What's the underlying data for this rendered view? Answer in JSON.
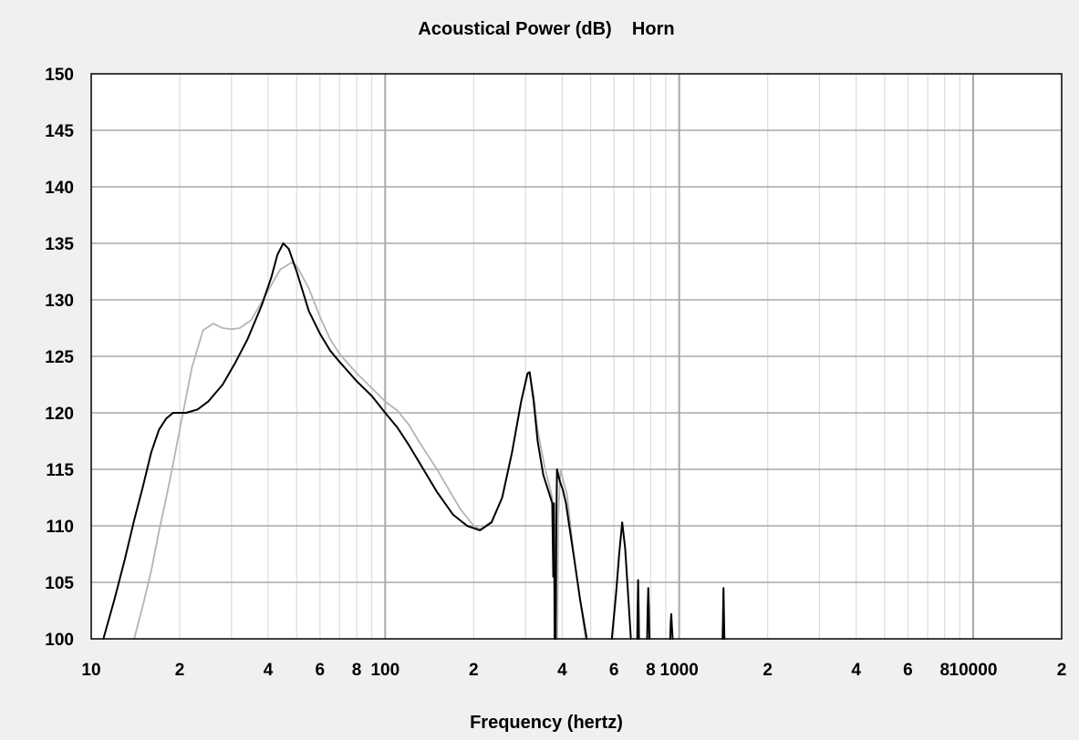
{
  "chart_data": {
    "type": "line",
    "title": "Acoustical Power (dB)    Horn",
    "xlabel": "Frequency (hertz)",
    "ylabel": "",
    "x_scale": "log",
    "xlim": [
      10,
      20000
    ],
    "ylim": [
      100,
      150
    ],
    "grid": true,
    "x_tick_labels": [
      {
        "value": 10,
        "label": "10"
      },
      {
        "value": 20,
        "label": "2"
      },
      {
        "value": 40,
        "label": "4"
      },
      {
        "value": 60,
        "label": "6"
      },
      {
        "value": 80,
        "label": "8"
      },
      {
        "value": 100,
        "label": "100"
      },
      {
        "value": 200,
        "label": "2"
      },
      {
        "value": 400,
        "label": "4"
      },
      {
        "value": 600,
        "label": "6"
      },
      {
        "value": 800,
        "label": "8"
      },
      {
        "value": 1000,
        "label": "1000"
      },
      {
        "value": 2000,
        "label": "2"
      },
      {
        "value": 4000,
        "label": "4"
      },
      {
        "value": 6000,
        "label": "6"
      },
      {
        "value": 8000,
        "label": "8"
      },
      {
        "value": 10000,
        "label": "10000"
      },
      {
        "value": 20000,
        "label": "2"
      }
    ],
    "y_ticks": [
      100,
      105,
      110,
      115,
      120,
      125,
      130,
      135,
      140,
      145,
      150
    ],
    "series": [
      {
        "color": "#b4b4b4",
        "points": [
          [
            14,
            100
          ],
          [
            15,
            103
          ],
          [
            16,
            106
          ],
          [
            17,
            109.5
          ],
          [
            18,
            112.5
          ],
          [
            19,
            115.5
          ],
          [
            20,
            118.5
          ],
          [
            22,
            124
          ],
          [
            24,
            127.3
          ],
          [
            26,
            127.9
          ],
          [
            28,
            127.5
          ],
          [
            30,
            127.4
          ],
          [
            32,
            127.5
          ],
          [
            35,
            128.2
          ],
          [
            38,
            129.8
          ],
          [
            42,
            131.8
          ],
          [
            44,
            132.7
          ],
          [
            46,
            133.0
          ],
          [
            48,
            133.3
          ],
          [
            50,
            133.0
          ],
          [
            55,
            131.0
          ],
          [
            60,
            128.5
          ],
          [
            65,
            126.5
          ],
          [
            70,
            125.2
          ],
          [
            80,
            123.5
          ],
          [
            90,
            122.2
          ],
          [
            100,
            121.0
          ],
          [
            110,
            120.2
          ],
          [
            120,
            119.0
          ],
          [
            130,
            117.5
          ],
          [
            150,
            115.0
          ],
          [
            180,
            111.5
          ],
          [
            200,
            110.0
          ],
          [
            210,
            109.7
          ],
          [
            230,
            110.4
          ],
          [
            250,
            112.5
          ],
          [
            270,
            116.5
          ],
          [
            290,
            121.0
          ],
          [
            305,
            123.4
          ],
          [
            310,
            123.5
          ],
          [
            320,
            121.5
          ],
          [
            330,
            118.5
          ],
          [
            350,
            115.0
          ],
          [
            360,
            113.8
          ],
          [
            370,
            112.5
          ],
          [
            375,
            110
          ],
          [
            380,
            100
          ]
        ]
      },
      {
        "color": "#b4b4b4",
        "points": [
          [
            385,
            100
          ],
          [
            388,
            111
          ],
          [
            395,
            115.0
          ],
          [
            405,
            113.8
          ],
          [
            415,
            112.8
          ],
          [
            425,
            110.5
          ],
          [
            440,
            107.0
          ],
          [
            460,
            103.5
          ],
          [
            480,
            100.0
          ]
        ]
      },
      {
        "color": "#000000",
        "points": [
          [
            11,
            100
          ],
          [
            12,
            103.5
          ],
          [
            13,
            107
          ],
          [
            14,
            110.5
          ],
          [
            15,
            113.5
          ],
          [
            16,
            116.5
          ],
          [
            17,
            118.5
          ],
          [
            18,
            119.5
          ],
          [
            19,
            120.0
          ],
          [
            21,
            120.0
          ],
          [
            23,
            120.3
          ],
          [
            25,
            121.0
          ],
          [
            28,
            122.5
          ],
          [
            31,
            124.5
          ],
          [
            34,
            126.5
          ],
          [
            38,
            129.5
          ],
          [
            41,
            132.0
          ],
          [
            43,
            134.0
          ],
          [
            45,
            135.0
          ],
          [
            47,
            134.5
          ],
          [
            50,
            132.5
          ],
          [
            55,
            129.0
          ],
          [
            60,
            127.0
          ],
          [
            65,
            125.5
          ],
          [
            70,
            124.5
          ],
          [
            80,
            122.8
          ],
          [
            90,
            121.5
          ],
          [
            100,
            120.0
          ],
          [
            110,
            118.7
          ],
          [
            120,
            117.2
          ],
          [
            130,
            115.7
          ],
          [
            150,
            113.0
          ],
          [
            170,
            111.0
          ],
          [
            190,
            110.0
          ],
          [
            210,
            109.6
          ],
          [
            230,
            110.3
          ],
          [
            250,
            112.5
          ],
          [
            270,
            116.5
          ],
          [
            290,
            121.0
          ],
          [
            305,
            123.5
          ],
          [
            310,
            123.6
          ],
          [
            320,
            121.0
          ],
          [
            330,
            117.5
          ],
          [
            345,
            114.5
          ],
          [
            360,
            113.0
          ],
          [
            370,
            112.0
          ],
          [
            373,
            105.5
          ],
          [
            375,
            112.0
          ],
          [
            377,
            100
          ]
        ]
      },
      {
        "color": "#000000",
        "points": [
          [
            380,
            100
          ],
          [
            382,
            110
          ],
          [
            384,
            115.0
          ],
          [
            392,
            114.0
          ],
          [
            402,
            113.2
          ],
          [
            412,
            112.0
          ],
          [
            420,
            110.5
          ],
          [
            440,
            107.0
          ],
          [
            460,
            103.5
          ],
          [
            485,
            100.0
          ]
        ]
      },
      {
        "color": "#000000",
        "points": [
          [
            590,
            100
          ],
          [
            610,
            104.0
          ],
          [
            625,
            107.5
          ],
          [
            640,
            110.3
          ],
          [
            655,
            108.0
          ],
          [
            670,
            104.0
          ],
          [
            685,
            100.0
          ]
        ]
      },
      {
        "color": "#000000",
        "points": [
          [
            720,
            100
          ],
          [
            722,
            102.5
          ],
          [
            725,
            105.2
          ],
          [
            728,
            102.5
          ],
          [
            730,
            100
          ]
        ]
      },
      {
        "color": "#000000",
        "points": [
          [
            778,
            100
          ],
          [
            781,
            102.5
          ],
          [
            785,
            104.5
          ],
          [
            789,
            102.5
          ],
          [
            792,
            100
          ]
        ]
      },
      {
        "color": "#000000",
        "points": [
          [
            932,
            100
          ],
          [
            936,
            101.5
          ],
          [
            940,
            102.2
          ],
          [
            945,
            101.0
          ],
          [
            950,
            100
          ]
        ]
      },
      {
        "color": "#000000",
        "points": [
          [
            1405,
            100
          ],
          [
            1410,
            102.2
          ],
          [
            1415,
            104.5
          ],
          [
            1420,
            102.2
          ],
          [
            1425,
            100
          ]
        ]
      }
    ]
  }
}
